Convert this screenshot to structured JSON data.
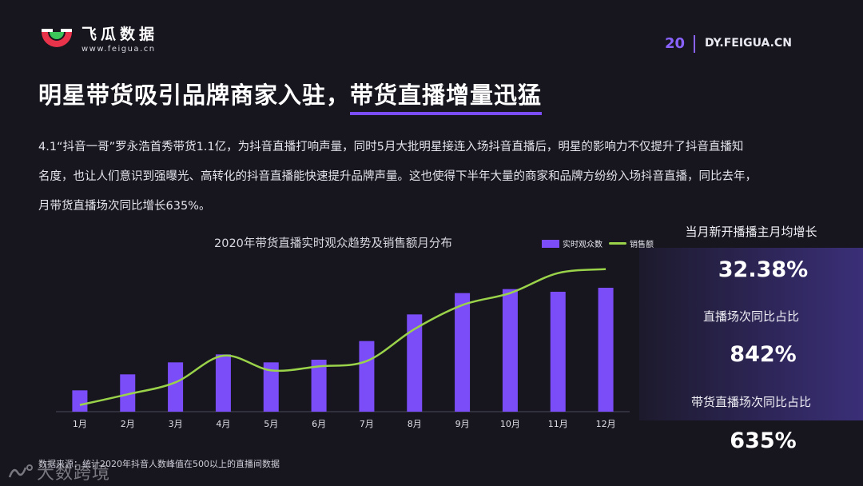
{
  "header": {
    "logo_name": "飞瓜数据",
    "logo_url": "www.feigua.cn",
    "page_number": "20",
    "site": "DY.FEIGUA.CN",
    "brand_colors": {
      "red": "#e8334a",
      "green": "#3cc65a",
      "accent": "#7b4df8"
    }
  },
  "headline": {
    "part1": "明星带货吸引品牌商家入驻，",
    "part2": "带货直播增量迅猛"
  },
  "body": {
    "line1": "4.1“抖音一哥”罗永浩首秀带货1.1亿，为抖音直播打响声量，同时5月大批明星接连入场抖音直播后，明星的影响力不仅提升了抖音直播知",
    "line2": "名度，也让人们意识到强曝光、高转化的抖音直播能快速提升品牌声量。这也使得下半年大量的商家和品牌方纷纷入场抖音直播，同比去年，",
    "line3": "月带货直播场次同比增长635%。"
  },
  "chart_data": {
    "type": "bar",
    "title": "2020年带货直播实时观众趋势及销售额月分布",
    "categories": [
      "1月",
      "2月",
      "3月",
      "4月",
      "5月",
      "6月",
      "7月",
      "8月",
      "9月",
      "10月",
      "11月",
      "12月"
    ],
    "series": [
      {
        "name": "实时观众数",
        "type": "bar",
        "color": "#7b4df8",
        "values": [
          16,
          28,
          37,
          43,
          37,
          39,
          53,
          73,
          89,
          92,
          90,
          93
        ]
      },
      {
        "name": "销售额",
        "type": "line",
        "color": "#9ad34a",
        "values": [
          5,
          13,
          22,
          42,
          31,
          34,
          38,
          62,
          80,
          89,
          104,
          107
        ]
      }
    ],
    "ylim": [
      0,
      120
    ],
    "grid": false,
    "legend": "top-right"
  },
  "stats": [
    {
      "label": "当月新开播播主月均增长",
      "value": "32.38%"
    },
    {
      "label": "直播场次同比占比",
      "value": "842%"
    },
    {
      "label": "带货直播场次同比占比",
      "value": "635%"
    }
  ],
  "footer": {
    "source": "数据来源：统计2020年抖音人数峰值在500以上的直播间数据",
    "watermark": "大数跨境"
  }
}
